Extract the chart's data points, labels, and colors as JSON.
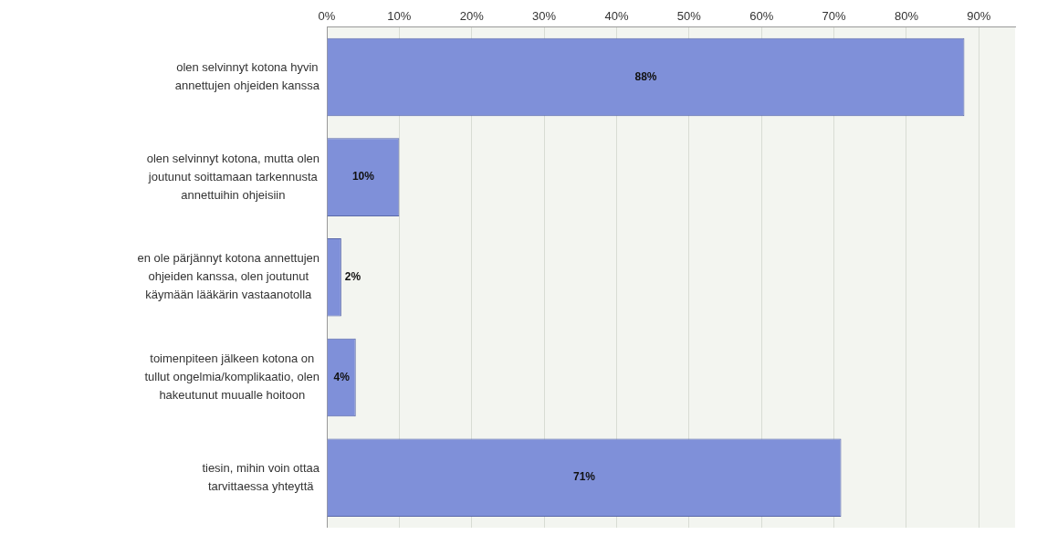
{
  "chart_data": {
    "type": "bar",
    "orientation": "horizontal",
    "categories": [
      "olen selvinnyt kotona hyvin annettujen ohjeiden kanssa",
      "olen selvinnyt kotona, mutta olen joutunut soittamaan tarkennusta annettuihin ohjeisiin",
      "en ole pärjännyt kotona annettujen ohjeiden kanssa, olen joutunut käymään lääkärin vastaanotolla",
      "toimenpiteen jälkeen kotona on tullut ongelmia/komplikaatio, olen hakeutunut muualle hoitoon",
      "tiesin, mihin voin ottaa tarvittaessa yhteyttä"
    ],
    "values": [
      88,
      10,
      2,
      4,
      71
    ],
    "value_labels": [
      "88%",
      "10%",
      "2%",
      "4%",
      "71%"
    ],
    "color": "#7f90d9",
    "xlim": [
      0,
      95
    ],
    "xticks": [
      {
        "value": 0,
        "label": "0%"
      },
      {
        "value": 10,
        "label": "10%"
      },
      {
        "value": 20,
        "label": "20%"
      },
      {
        "value": 30,
        "label": "30%"
      },
      {
        "value": 40,
        "label": "40%"
      },
      {
        "value": 50,
        "label": "50%"
      },
      {
        "value": 60,
        "label": "60%"
      },
      {
        "value": 70,
        "label": "70%"
      },
      {
        "value": 80,
        "label": "80%"
      },
      {
        "value": 90,
        "label": "90%"
      }
    ],
    "grid": "x",
    "legend": false
  }
}
